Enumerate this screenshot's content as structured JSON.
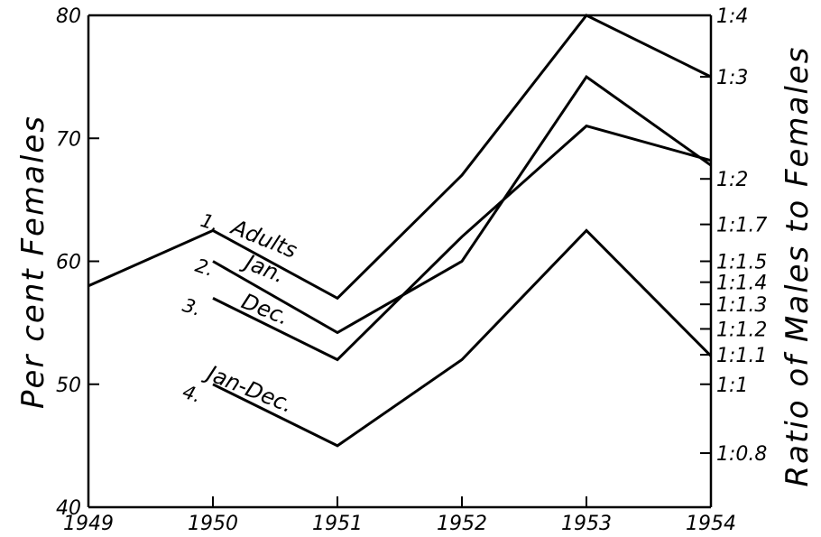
{
  "chart_data": {
    "type": "line",
    "x": [
      1949,
      1950,
      1951,
      1952,
      1953,
      1954
    ],
    "xlim": [
      1949,
      1954
    ],
    "ylim": [
      40,
      80
    ],
    "ylabel": "Per cent Females",
    "y2label": "Ratio of Males to Females",
    "xticks": [
      "1949",
      "1950",
      "1951",
      "1952",
      "1953",
      "1954"
    ],
    "yticks": [
      {
        "value": 40,
        "label": "40"
      },
      {
        "value": 50,
        "label": "50"
      },
      {
        "value": 60,
        "label": "60"
      },
      {
        "value": 70,
        "label": "70"
      },
      {
        "value": 80,
        "label": "80"
      }
    ],
    "y2ticks": [
      {
        "value": 80,
        "label": "1:4"
      },
      {
        "value": 75,
        "label": "1:3"
      },
      {
        "value": 66.7,
        "label": "1:2"
      },
      {
        "value": 63,
        "label": "1:1.7"
      },
      {
        "value": 60,
        "label": "1:1.5"
      },
      {
        "value": 58.3,
        "label": "1:1.4"
      },
      {
        "value": 56.5,
        "label": "1:1.3"
      },
      {
        "value": 54.5,
        "label": "1:1.2"
      },
      {
        "value": 52.4,
        "label": "1:1.1"
      },
      {
        "value": 50,
        "label": "1:1"
      },
      {
        "value": 44.4,
        "label": "1:0.8"
      }
    ],
    "grid": false,
    "series": [
      {
        "name": "Adults",
        "number": "1.",
        "points": [
          [
            1949,
            58
          ],
          [
            1950,
            62.5
          ],
          [
            1951,
            57
          ],
          [
            1952,
            67
          ],
          [
            1953,
            80
          ],
          [
            1954,
            75
          ]
        ]
      },
      {
        "name": "Jan.",
        "number": "2.",
        "points": [
          [
            1950,
            60
          ],
          [
            1951,
            54.2
          ],
          [
            1952,
            60
          ],
          [
            1953,
            75
          ],
          [
            1954,
            67.8
          ]
        ]
      },
      {
        "name": "Dec.",
        "number": "3.",
        "points": [
          [
            1950,
            57
          ],
          [
            1951,
            52
          ],
          [
            1952,
            62
          ],
          [
            1953,
            71
          ],
          [
            1954,
            68.2
          ]
        ]
      },
      {
        "name": "Jan-Dec.",
        "number": "4.",
        "points": [
          [
            1950,
            50
          ],
          [
            1951,
            45
          ],
          [
            1952,
            52
          ],
          [
            1953,
            62.5
          ],
          [
            1954,
            52.3
          ]
        ]
      }
    ]
  }
}
